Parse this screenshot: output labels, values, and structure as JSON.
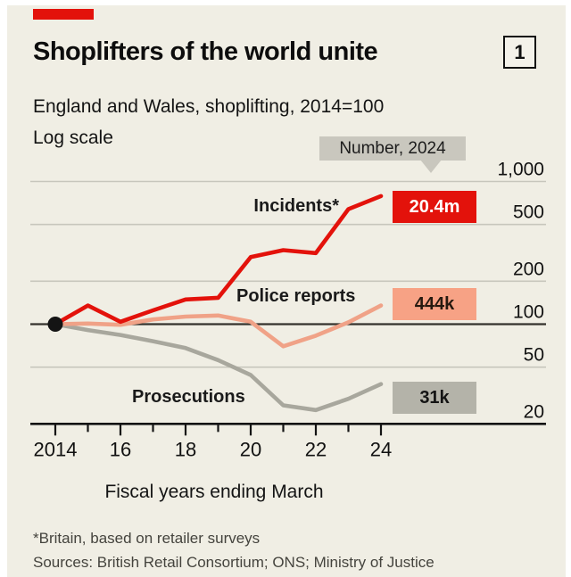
{
  "meta": {
    "brand_color": "#e3120b",
    "index_number": "1"
  },
  "header": {
    "title": "Shoplifters of the world unite",
    "subtitle": "England and Wales, shoplifting, 2014=100",
    "scale_note": "Log scale"
  },
  "annotation": {
    "label": "Number, 2024"
  },
  "chart_data": {
    "type": "line",
    "scale": "log",
    "title": "Shoplifters of the world unite",
    "subtitle": "England and Wales, shoplifting, 2014=100",
    "x": [
      2014,
      2015,
      2016,
      2017,
      2018,
      2019,
      2020,
      2021,
      2022,
      2023,
      2024
    ],
    "x_tick_labels": [
      "2014",
      "16",
      "18",
      "20",
      "22",
      "24"
    ],
    "xlabel": "Fiscal years ending March",
    "y_axis": {
      "ticks": [
        1000,
        500,
        200,
        100,
        50,
        20
      ],
      "tick_labels": [
        "1,000",
        "500",
        "200",
        "100",
        "50",
        "20"
      ],
      "baseline": 100,
      "ylim": [
        20,
        1000
      ]
    },
    "start_marker": {
      "x": 2014,
      "value": 100,
      "color": "#141414"
    },
    "series": [
      {
        "name": "Incidents*",
        "color": "#e3120b",
        "number_2024": "20.4m",
        "values": [
          100,
          135,
          104,
          125,
          149,
          153,
          295,
          330,
          315,
          640,
          790
        ]
      },
      {
        "name": "Police reports",
        "color": "#f0a287",
        "number_2024": "444k",
        "values": [
          100,
          101,
          99,
          108,
          113,
          115,
          104,
          70,
          83,
          103,
          135
        ]
      },
      {
        "name": "Prosecutions",
        "color": "#a8a79d",
        "number_2024": "31k",
        "values": [
          100,
          91,
          84,
          76,
          68,
          56,
          44,
          27,
          25,
          30,
          38
        ]
      }
    ],
    "grid": true,
    "legend_position": "inline-labels"
  },
  "footer": {
    "footnote": "*Britain, based on retailer surveys",
    "sources": "Sources: British Retail Consortium; ONS; Ministry of Justice"
  }
}
